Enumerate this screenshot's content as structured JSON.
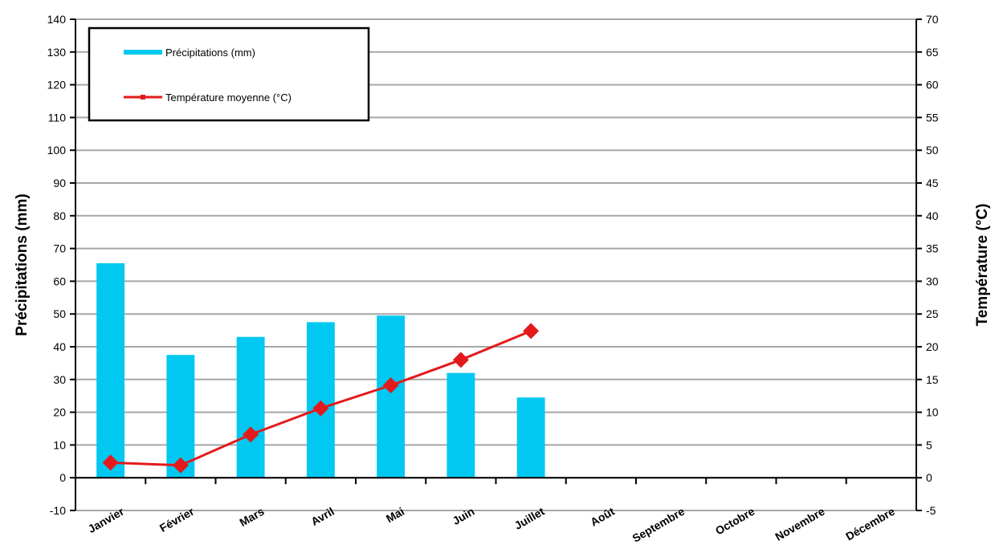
{
  "chart_data": {
    "type": "bar+line",
    "categories": [
      "Janvier",
      "Février",
      "Mars",
      "Avril",
      "Mai",
      "Juin",
      "Juillet",
      "Août",
      "Septembre",
      "Octobre",
      "Novembre",
      "Décembre"
    ],
    "series": [
      {
        "name": "Précipitations (mm)",
        "type": "bar",
        "axis": "left",
        "color": "#00c8f0",
        "values": [
          65.5,
          37.5,
          43,
          47.5,
          49.5,
          32,
          24.5,
          null,
          null,
          null,
          null,
          null
        ]
      },
      {
        "name": "Température moyenne (°C)",
        "type": "line",
        "axis": "right",
        "color": "#e31a1c",
        "values": [
          2.3,
          1.9,
          6.6,
          10.6,
          14.1,
          18.0,
          22.4,
          null,
          null,
          null,
          null,
          null
        ]
      }
    ],
    "ylabel_left": "Précipitations (mm)",
    "ylabel_right": "Température (°C)",
    "ylim_left": [
      -10,
      140
    ],
    "ylim_right": [
      -5,
      70
    ],
    "yticks_left": [
      "-10",
      "0",
      "10",
      "20",
      "30",
      "40",
      "50",
      "60",
      "70",
      "80",
      "90",
      "100",
      "110",
      "120",
      "130",
      "140"
    ],
    "yticks_right": [
      "-5",
      "0",
      "5",
      "10",
      "15",
      "20",
      "25",
      "30",
      "35",
      "40",
      "45",
      "50",
      "55",
      "60",
      "65",
      "70"
    ],
    "grid": true,
    "legend_position": "top-left"
  }
}
